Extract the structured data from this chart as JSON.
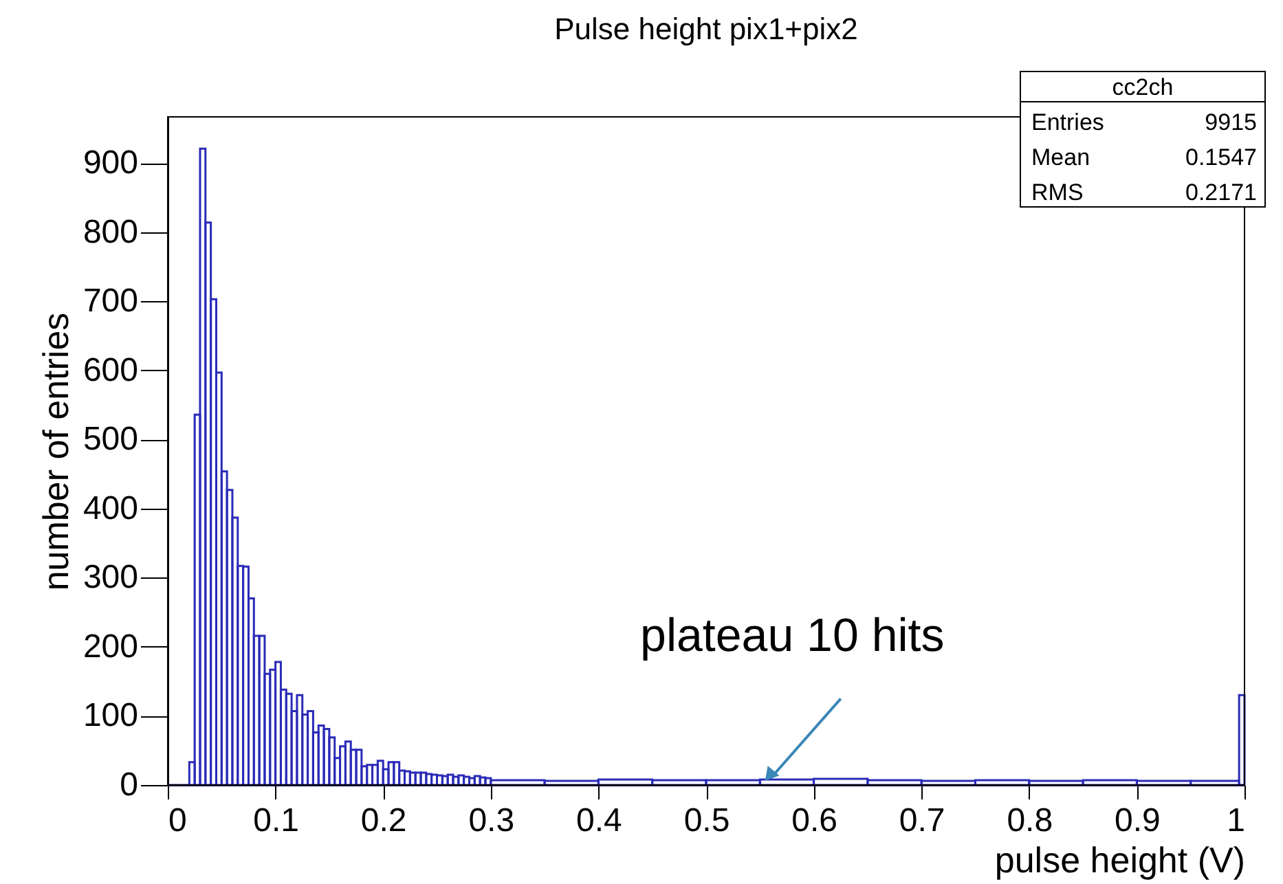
{
  "chart_data": {
    "type": "histogram",
    "title": "Pulse height pix1+pix2",
    "xlabel": "pulse height (V)",
    "ylabel": "number of entries",
    "bins": [
      0,
      0.02,
      0.025,
      0.03,
      0.035,
      0.04,
      0.045,
      0.05,
      0.055,
      0.06,
      0.065,
      0.07,
      0.075,
      0.08,
      0.085,
      0.09,
      0.095,
      0.1,
      0.105,
      0.11,
      0.115,
      0.12,
      0.125,
      0.13,
      0.135,
      0.14,
      0.145,
      0.15,
      0.155,
      0.16,
      0.165,
      0.17,
      0.175,
      0.18,
      0.185,
      0.19,
      0.195,
      0.2,
      0.205,
      0.21,
      0.215,
      0.22,
      0.225,
      0.23,
      0.235,
      0.24,
      0.245,
      0.25,
      0.255,
      0.26,
      0.265,
      0.27,
      0.275,
      0.28,
      0.285,
      0.29,
      0.295,
      0.3,
      0.35,
      0.4,
      0.45,
      0.5,
      0.55,
      0.6,
      0.65,
      0.7,
      0.75,
      0.8,
      0.85,
      0.9,
      0.95,
      0.995,
      1.0
    ],
    "values": [
      0,
      33,
      536,
      921,
      814,
      703,
      597,
      454,
      427,
      387,
      317,
      316,
      270,
      216,
      216,
      161,
      167,
      178,
      138,
      132,
      107,
      130,
      102,
      107,
      76,
      86,
      81,
      69,
      39,
      56,
      63,
      51,
      51,
      27,
      29,
      29,
      35,
      23,
      33,
      33,
      21,
      20,
      18,
      18,
      18,
      16,
      15,
      14,
      13,
      15,
      12,
      14,
      12,
      10,
      13,
      11,
      10,
      7,
      6,
      8,
      7,
      7,
      8,
      9,
      7,
      6,
      7,
      6,
      7,
      6,
      6,
      130
    ],
    "color": "#2a2ab8",
    "xlim": [
      0,
      1
    ],
    "xticks": [
      0,
      0.1,
      0.2,
      0.3,
      0.4,
      0.5,
      0.6,
      0.7,
      0.8,
      0.9,
      1
    ],
    "ylim": [
      0,
      967
    ],
    "yticks": [
      0,
      100,
      200,
      300,
      400,
      500,
      600,
      700,
      800,
      900
    ],
    "grid": false,
    "annotations": [
      {
        "text": "plateau 10 hits",
        "x": 0.56,
        "y": 10
      },
      "cc2ch",
      "Entries 9915",
      "Mean 0.1547",
      "RMS 0.2171"
    ]
  }
}
